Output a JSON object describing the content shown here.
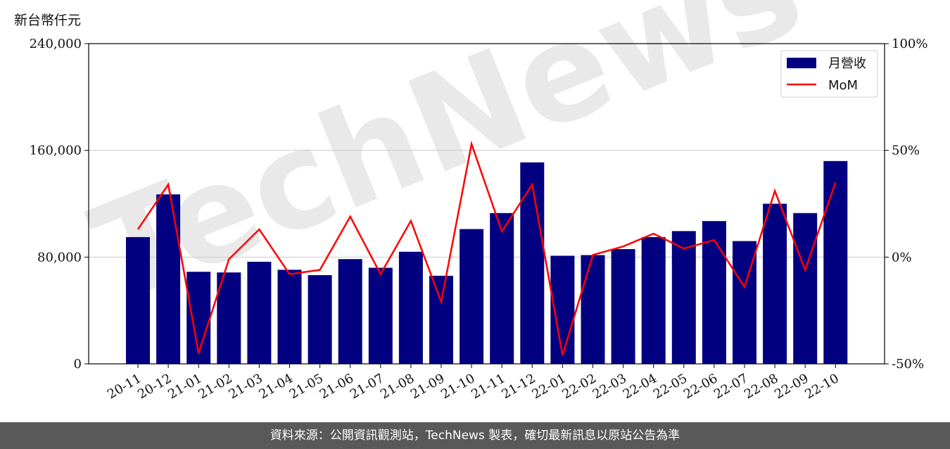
{
  "unit_label": "新台幣仟元",
  "footer_text": "資料來源：公開資訊觀測站，TechNews 製表，確切最新訊息以原站公告為準",
  "watermark": "TechNews",
  "chart_data": {
    "type": "bar",
    "categories": [
      "20-11",
      "20-12",
      "21-01",
      "21-02",
      "21-03",
      "21-04",
      "21-05",
      "21-06",
      "21-07",
      "21-08",
      "21-09",
      "21-10",
      "21-11",
      "21-12",
      "22-01",
      "22-02",
      "22-03",
      "22-04",
      "22-05",
      "22-06",
      "22-07",
      "22-08",
      "22-09",
      "22-10"
    ],
    "series": [
      {
        "name": "月營收",
        "axis": "left",
        "color": "#000080",
        "values": [
          95000,
          127000,
          69000,
          68500,
          76500,
          70500,
          66500,
          78500,
          72000,
          84000,
          66000,
          101000,
          113000,
          151000,
          81000,
          81500,
          86000,
          95000,
          99500,
          107000,
          92000,
          120000,
          113000,
          152000
        ]
      },
      {
        "name": "MoM",
        "axis": "right",
        "color": "#ff0000",
        "type": "line",
        "values": [
          13,
          34,
          -45,
          -1,
          13,
          -8,
          -6,
          19,
          -8,
          17,
          -21,
          53,
          12,
          34,
          -46,
          1,
          5,
          11,
          4,
          8,
          -14,
          31,
          -6,
          35
        ]
      }
    ],
    "ylim_left": [
      0,
      240000
    ],
    "yticks_left": [
      "0",
      "80,000",
      "160,000",
      "240,000"
    ],
    "ylim_right": [
      -50,
      100
    ],
    "yticks_right": [
      "-50%",
      "0%",
      "50%",
      "100%"
    ],
    "grid": "horizontal",
    "legend": "top-right"
  }
}
